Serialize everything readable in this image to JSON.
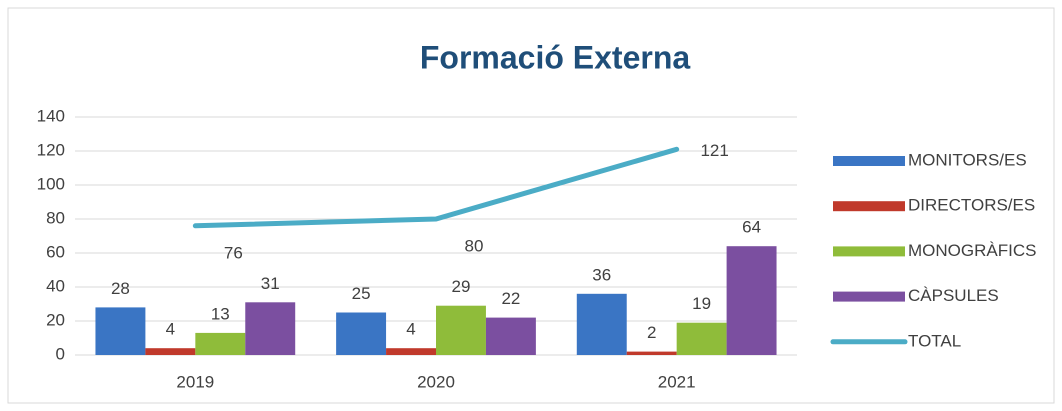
{
  "chart_data": {
    "type": "bar",
    "title": "Formació Externa",
    "categories": [
      "2019",
      "2020",
      "2021"
    ],
    "series": [
      {
        "name": "MONITORS/ES",
        "color": "#3a75c4",
        "values": [
          28,
          25,
          36
        ]
      },
      {
        "name": "DIRECTORS/ES",
        "color": "#c0392b",
        "values": [
          4,
          4,
          2
        ]
      },
      {
        "name": "MONOGRÀFICS",
        "color": "#8fbc3a",
        "values": [
          13,
          29,
          19
        ]
      },
      {
        "name": "CÀPSULES",
        "color": "#7b4fa0",
        "values": [
          31,
          22,
          64
        ]
      },
      {
        "name": "TOTAL",
        "color": "#4bacc6",
        "type": "line",
        "values": [
          76,
          80,
          121
        ]
      }
    ],
    "ylim": [
      0,
      140
    ],
    "yticks": [
      0,
      20,
      40,
      60,
      80,
      100,
      120,
      140
    ],
    "grid": true,
    "legend": "right"
  }
}
